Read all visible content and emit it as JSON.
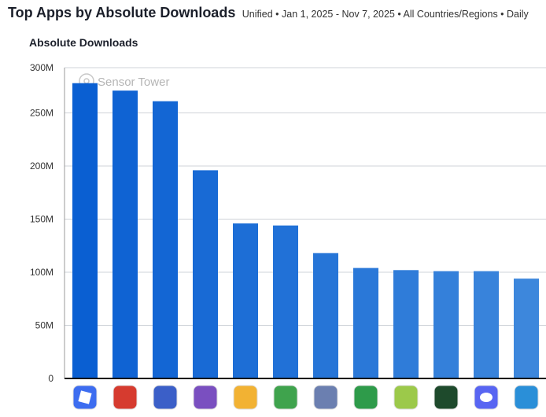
{
  "header": {
    "title": "Top Apps by Absolute Downloads",
    "subtitle": "Unified • Jan 1, 2025 - Nov 7, 2025 • All Countries/Regions • Daily"
  },
  "watermark": "Sensor Tower",
  "chart_data": {
    "type": "bar",
    "ylabel": "Absolute Downloads",
    "ylim": [
      0,
      300000000
    ],
    "yticks": [
      "0",
      "50M",
      "100M",
      "150M",
      "200M",
      "250M",
      "300M"
    ],
    "grid": true,
    "categories": [
      "roblox-icon",
      "block-puzzle-icon",
      "dragon-game-icon",
      "subway-surfers-icon",
      "stacking-game-icon",
      "ludo-icon",
      "hole-game-icon",
      "mahjong-icon",
      "talking-tom-2-icon",
      "football-game-icon",
      "discord-icon",
      "8-ball-pool-icon"
    ],
    "values": [
      278000000,
      271000000,
      261000000,
      196000000,
      146000000,
      144000000,
      118000000,
      104000000,
      102000000,
      101000000,
      101000000,
      94000000
    ],
    "colors": {
      "start": "#0a5fd2",
      "end": "#3d87dc"
    },
    "icon_colors": [
      "#3d6df0",
      "#d63b2f",
      "#3b5fc8",
      "#7a4fc0",
      "#f2b233",
      "#3fa34d",
      "#6b7fb0",
      "#2e9b4a",
      "#9cc94a",
      "#1e4a2c",
      "#5865f2",
      "#2a8fd8"
    ]
  }
}
